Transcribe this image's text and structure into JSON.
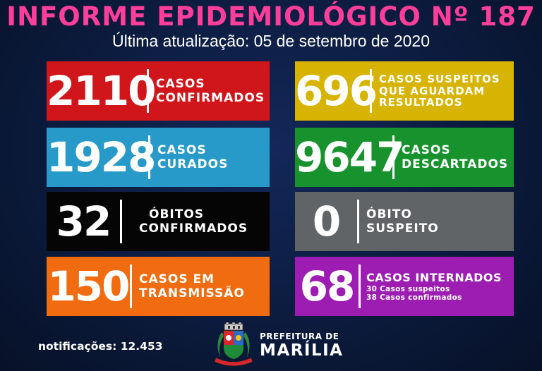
{
  "header": {
    "title": "INFORME EPIDEMIOLÓGICO Nº 187",
    "subtitle": "Última atualização: 05 de setembro de 2020"
  },
  "cards": {
    "confirmed": {
      "value": "2110",
      "label_line1": "CASOS",
      "label_line2": "CONFIRMADOS",
      "color": "#d0161b"
    },
    "suspected": {
      "value": "696",
      "label_line1": "CASOS SUSPEITOS",
      "label_line2": "QUE AGUARDAM",
      "label_line3": "RESULTADOS",
      "color": "#d7b401"
    },
    "cured": {
      "value": "1928",
      "label_line1": "CASOS",
      "label_line2": "CURADOS",
      "color": "#279ac9"
    },
    "discarded": {
      "value": "9647",
      "label_line1": "CASOS",
      "label_line2": "DESCARTADOS",
      "color": "#17922d"
    },
    "deaths": {
      "value": "32",
      "label_line1": "ÓBITOS",
      "label_line2": "CONFIRMADOS",
      "color": "#050505"
    },
    "suspected_death": {
      "value": "0",
      "label_line1": "ÓBITO",
      "label_line2": "SUSPEITO",
      "color": "#616466"
    },
    "transmission": {
      "value": "150",
      "label_line1": "CASOS EM",
      "label_line2": "TRANSMISSÃO",
      "color": "#f16c10"
    },
    "hospitalized": {
      "value": "68",
      "label_line1": "CASOS INTERNADOS",
      "detail_line1": "30 Casos suspeitos",
      "detail_line2": "38 Casos confirmados",
      "color": "#9d1db3"
    }
  },
  "footer": {
    "notifications": "notificações: 12.453",
    "pref_top": "PREFEITURA DE",
    "pref_name": "MARÍLIA",
    "logo_icon": "city-coat-of-arms-icon"
  }
}
